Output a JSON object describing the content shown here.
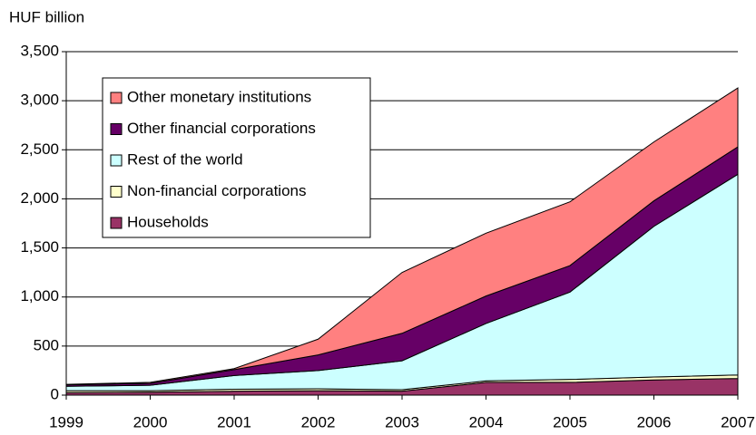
{
  "chart_data": {
    "type": "stacked_area",
    "ylabel": "HUF billion",
    "categories": [
      "1999",
      "2000",
      "2001",
      "2002",
      "2003",
      "2004",
      "2005",
      "2006",
      "2007"
    ],
    "series": [
      {
        "name": "Households",
        "color": "#993366",
        "values": [
          25,
          30,
          40,
          45,
          40,
          130,
          130,
          155,
          170
        ]
      },
      {
        "name": "Non-financial corporations",
        "color": "#ffffcc",
        "values": [
          20,
          15,
          20,
          20,
          15,
          15,
          30,
          30,
          35
        ]
      },
      {
        "name": "Rest of the world",
        "color": "#ccffff",
        "values": [
          45,
          55,
          140,
          185,
          295,
          585,
          890,
          1535,
          2045
        ]
      },
      {
        "name": "Other financial corporations",
        "color": "#660066",
        "values": [
          15,
          20,
          60,
          160,
          280,
          280,
          270,
          260,
          280
        ]
      },
      {
        "name": "Other monetary institutions",
        "color": "#ff8080",
        "values": [
          5,
          10,
          10,
          160,
          620,
          640,
          650,
          600,
          600
        ]
      }
    ],
    "ylim": [
      0,
      3500
    ],
    "yticks": [
      0,
      500,
      {
        "value": 1000,
        "label": "1,000"
      },
      {
        "value": 1500,
        "label": "1,500"
      },
      {
        "value": 2000,
        "label": "2,000"
      },
      {
        "value": 2500,
        "label": "2,500"
      },
      {
        "value": 3000,
        "label": "3,000"
      },
      {
        "value": 3500,
        "label": "3,500"
      }
    ],
    "grid": true,
    "legend": "upper left"
  }
}
